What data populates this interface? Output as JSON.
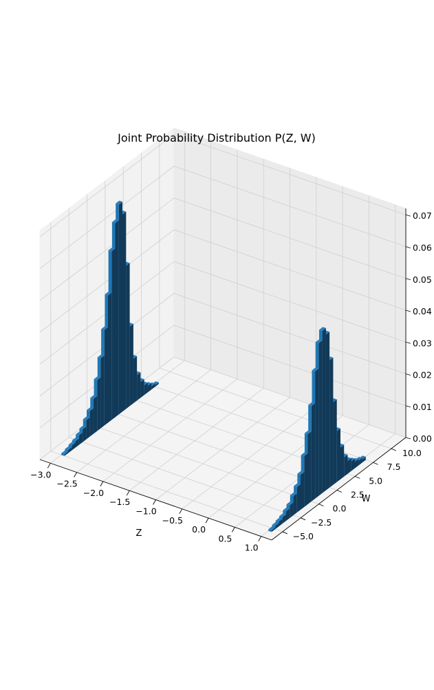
{
  "chart_data": {
    "type": "bar3d",
    "title": "Joint Probability Distribution P(Z, W)",
    "xlabel": "Z",
    "ylabel": "W",
    "zlabel": "",
    "xlim": [
      -3.2,
      1.2
    ],
    "ylim": [
      -6.5,
      12
    ],
    "zlim": [
      0,
      0.072
    ],
    "x_ticks": [
      -3.0,
      -2.5,
      -2.0,
      -1.5,
      -1.0,
      -0.5,
      0.0,
      0.5,
      1.0
    ],
    "x_tick_labels": [
      "−3.0",
      "−2.5",
      "−2.0",
      "−1.5",
      "−1.0",
      "−0.5",
      "0.0",
      "0.5",
      "1.0"
    ],
    "y_ticks": [
      -5.0,
      -2.5,
      0.0,
      2.5,
      5.0,
      7.5,
      10.0
    ],
    "y_tick_labels": [
      "−5.0",
      "−2.5",
      "0.0",
      "2.5",
      "5.0",
      "7.5",
      "10.0"
    ],
    "z_ticks": [
      0.0,
      0.01,
      0.02,
      0.03,
      0.04,
      0.05,
      0.06,
      0.07
    ],
    "z_tick_labels": [
      "0.00",
      "0.01",
      "0.02",
      "0.03",
      "0.04",
      "0.05",
      "0.06",
      "0.07"
    ],
    "grid": true,
    "bar_color": "#1f77b4",
    "bar_width_w": 0.5,
    "series": [
      {
        "z": -3.0,
        "w": [
          -5.0,
          -4.5,
          -4.0,
          -3.5,
          -3.0,
          -2.5,
          -2.0,
          -1.5,
          -1.0,
          -0.5,
          0.0,
          0.5,
          1.0,
          1.5,
          2.0,
          2.5,
          3.0,
          3.5,
          4.0,
          4.5,
          5.0,
          5.5,
          6.0,
          6.5,
          7.0,
          7.5
        ],
        "p": [
          0.0005,
          0.001,
          0.0015,
          0.002,
          0.003,
          0.004,
          0.006,
          0.008,
          0.011,
          0.016,
          0.022,
          0.03,
          0.04,
          0.053,
          0.061,
          0.066,
          0.062,
          0.045,
          0.025,
          0.014,
          0.008,
          0.005,
          0.003,
          0.002,
          0.001,
          0.0005
        ]
      },
      {
        "z": 1.0,
        "w": [
          -5.5,
          -5.0,
          -4.5,
          -4.0,
          -3.5,
          -3.0,
          -2.5,
          -2.0,
          -1.5,
          -1.0,
          -0.5,
          0.0,
          0.5,
          1.0,
          1.5,
          2.0,
          2.5,
          3.0,
          3.5,
          4.0,
          4.5,
          5.0,
          5.5,
          6.0,
          6.5,
          7.0
        ],
        "p": [
          0.0005,
          0.001,
          0.0015,
          0.002,
          0.003,
          0.004,
          0.006,
          0.008,
          0.011,
          0.016,
          0.022,
          0.03,
          0.04,
          0.048,
          0.051,
          0.049,
          0.04,
          0.026,
          0.016,
          0.01,
          0.006,
          0.004,
          0.003,
          0.002,
          0.0015,
          0.001
        ]
      }
    ]
  }
}
